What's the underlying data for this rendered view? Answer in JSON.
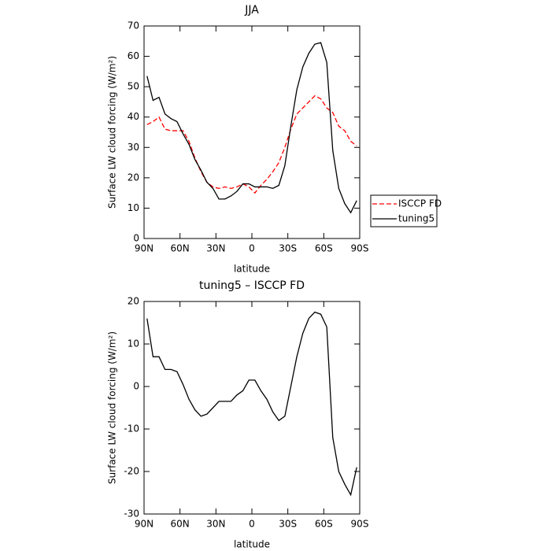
{
  "chart_data": [
    {
      "type": "line",
      "title": "JJA",
      "x_label": "latitude",
      "y_label": "Surface LW cloud forcing (W/m²)",
      "x": [
        87.5,
        82.5,
        77.5,
        72.5,
        67.5,
        62.5,
        57.5,
        52.5,
        47.5,
        42.5,
        37.5,
        32.5,
        27.5,
        22.5,
        17.5,
        12.5,
        7.5,
        2.5,
        -2.5,
        -7.5,
        -12.5,
        -17.5,
        -22.5,
        -27.5,
        -32.5,
        -37.5,
        -42.5,
        -47.5,
        -52.5,
        -57.5,
        -62.5,
        -67.5,
        -72.5,
        -77.5,
        -82.5,
        -87.5
      ],
      "series": [
        {
          "name": "ISCCP FD",
          "color": "#ff0000",
          "linestyle": "dashed",
          "values": [
            37.5,
            38.5,
            40,
            36,
            35.5,
            35.5,
            35.5,
            32,
            26.5,
            22,
            18.5,
            17,
            16.5,
            17,
            16.5,
            17,
            18,
            17,
            15,
            17.5,
            19.5,
            22,
            25,
            30,
            36,
            41,
            43,
            45,
            47,
            46,
            43,
            41.5,
            37,
            35.5,
            32,
            30.5
          ]
        },
        {
          "name": "tuning5",
          "color": "#000000",
          "linestyle": "solid",
          "values": [
            53.5,
            45.5,
            46.5,
            41,
            39.5,
            38.5,
            34.5,
            31,
            26,
            22.5,
            18.5,
            16.5,
            13,
            13,
            14,
            15.5,
            18,
            18,
            17,
            17,
            17,
            16.5,
            17.5,
            24,
            37,
            49,
            56.5,
            61,
            64,
            64.5,
            58,
            29,
            16.5,
            11.5,
            8.5,
            12.5
          ]
        }
      ],
      "xlim": [
        90,
        -90
      ],
      "xticks": [
        {
          "value": 90,
          "label": "90N"
        },
        {
          "value": 60,
          "label": "60N"
        },
        {
          "value": 30,
          "label": "30N"
        },
        0,
        {
          "value": -30,
          "label": "30S"
        },
        {
          "value": -60,
          "label": "60S"
        },
        {
          "value": -90,
          "label": "90S"
        }
      ],
      "ylim": [
        0,
        70
      ],
      "yticks": [
        0,
        10,
        20,
        30,
        40,
        50,
        60,
        70
      ],
      "legend": "right"
    },
    {
      "type": "line",
      "title": "tuning5 – ISCCP FD",
      "x_label": "latitude",
      "y_label": "Surface LW cloud forcing (W/m²)",
      "x": [
        87.5,
        82.5,
        77.5,
        72.5,
        67.5,
        62.5,
        57.5,
        52.5,
        47.5,
        42.5,
        37.5,
        32.5,
        27.5,
        22.5,
        17.5,
        12.5,
        7.5,
        2.5,
        -2.5,
        -7.5,
        -12.5,
        -17.5,
        -22.5,
        -27.5,
        -32.5,
        -37.5,
        -42.5,
        -47.5,
        -52.5,
        -57.5,
        -62.5,
        -67.5,
        -72.5,
        -77.5,
        -82.5,
        -87.5
      ],
      "values": [
        16,
        7,
        7,
        4,
        4,
        3.5,
        0.5,
        -3,
        -5.5,
        -7,
        -6.5,
        -5,
        -3.5,
        -3.5,
        -3.5,
        -2,
        -1,
        1.5,
        1.5,
        -1,
        -3,
        -6,
        -8,
        -7,
        0,
        7,
        12.5,
        16,
        17.5,
        17,
        14,
        -12,
        -20,
        -23,
        -25.5,
        -19
      ],
      "color": "#000000",
      "xlim": [
        90,
        -90
      ],
      "xticks": [
        {
          "value": 90,
          "label": "90N"
        },
        {
          "value": 60,
          "label": "60N"
        },
        {
          "value": 30,
          "label": "30N"
        },
        0,
        {
          "value": -30,
          "label": "30S"
        },
        {
          "value": -60,
          "label": "60S"
        },
        {
          "value": -90,
          "label": "90S"
        }
      ],
      "ylim": [
        -30,
        20
      ],
      "yticks": [
        -30,
        -20,
        -10,
        0,
        10,
        20
      ]
    }
  ]
}
